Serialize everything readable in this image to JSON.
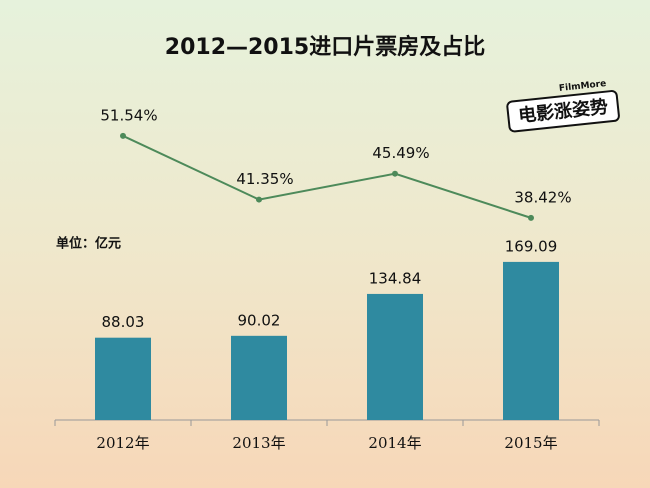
{
  "chart_data": {
    "type": "bar",
    "title": "2012—2015进口片票房及占比",
    "unit_label": "单位：亿元",
    "logo": {
      "name": "电影涨姿势",
      "brand": "FilmMore"
    },
    "categories": [
      "2012年",
      "2013年",
      "2014年",
      "2015年"
    ],
    "series": [
      {
        "type": "bar",
        "color": "#2f8aa0",
        "values": [
          88.03,
          90.02,
          134.84,
          169.09
        ]
      },
      {
        "type": "line",
        "color": "#4d8a5a",
        "values": [
          51.54,
          41.35,
          45.49,
          38.42
        ],
        "value_labels": [
          "51.54%",
          "41.35%",
          "45.49%",
          "38.42%"
        ]
      }
    ]
  }
}
